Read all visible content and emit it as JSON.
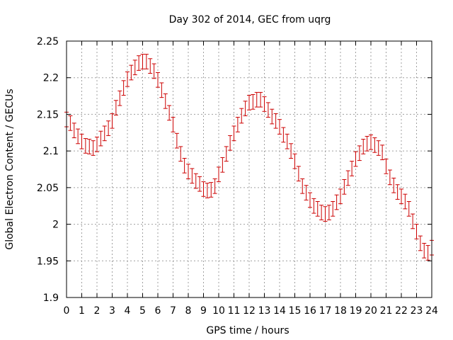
{
  "chart_data": {
    "type": "scatter",
    "title": "Day 302 of 2014, GEC from uqrg",
    "xlabel": "GPS time / hours",
    "ylabel": "Global Electron Content / GECUs",
    "xlim": [
      0,
      24
    ],
    "ylim": [
      1.9,
      2.25
    ],
    "xticks": [
      0,
      1,
      2,
      3,
      4,
      5,
      6,
      7,
      8,
      9,
      10,
      11,
      12,
      13,
      14,
      15,
      16,
      17,
      18,
      19,
      20,
      21,
      22,
      23,
      24
    ],
    "yticks": [
      1.9,
      1.95,
      2,
      2.05,
      2.1,
      2.15,
      2.2,
      2.25
    ],
    "ytick_labels": [
      "1.9",
      "1.95",
      "2",
      "2.05",
      "2.1",
      "2.15",
      "2.2",
      "2.25"
    ],
    "grid": true,
    "error_bar": 0.01,
    "color": "#cc0000",
    "x": [
      0,
      0.25,
      0.5,
      0.75,
      1,
      1.25,
      1.5,
      1.75,
      2,
      2.25,
      2.5,
      2.75,
      3,
      3.25,
      3.5,
      3.75,
      4,
      4.25,
      4.5,
      4.75,
      5,
      5.25,
      5.5,
      5.75,
      6,
      6.25,
      6.5,
      6.75,
      7,
      7.25,
      7.5,
      7.75,
      8,
      8.25,
      8.5,
      8.75,
      9,
      9.25,
      9.5,
      9.75,
      10,
      10.25,
      10.5,
      10.75,
      11,
      11.25,
      11.5,
      11.75,
      12,
      12.25,
      12.5,
      12.75,
      13,
      13.25,
      13.5,
      13.75,
      14,
      14.25,
      14.5,
      14.75,
      15,
      15.25,
      15.5,
      15.75,
      16,
      16.25,
      16.5,
      16.75,
      17,
      17.25,
      17.5,
      17.75,
      18,
      18.25,
      18.5,
      18.75,
      19,
      19.25,
      19.5,
      19.75,
      20,
      20.25,
      20.5,
      20.75,
      21,
      21.25,
      21.5,
      21.75,
      22,
      22.25,
      22.5,
      22.75,
      23,
      23.25,
      23.5,
      23.75,
      24
    ],
    "y": [
      2.143,
      2.138,
      2.128,
      2.12,
      2.113,
      2.107,
      2.106,
      2.104,
      2.109,
      2.117,
      2.124,
      2.131,
      2.141,
      2.159,
      2.172,
      2.186,
      2.198,
      2.207,
      2.214,
      2.22,
      2.222,
      2.222,
      2.216,
      2.209,
      2.197,
      2.183,
      2.168,
      2.152,
      2.136,
      2.114,
      2.096,
      2.08,
      2.072,
      2.066,
      2.059,
      2.055,
      2.048,
      2.046,
      2.047,
      2.052,
      2.068,
      2.081,
      2.096,
      2.111,
      2.124,
      2.136,
      2.148,
      2.158,
      2.166,
      2.167,
      2.17,
      2.17,
      2.164,
      2.156,
      2.147,
      2.141,
      2.133,
      2.122,
      2.113,
      2.1,
      2.086,
      2.069,
      2.052,
      2.043,
      2.033,
      2.025,
      2.021,
      2.016,
      2.014,
      2.016,
      2.021,
      2.03,
      2.038,
      2.051,
      2.063,
      2.076,
      2.089,
      2.097,
      2.106,
      2.11,
      2.112,
      2.108,
      2.104,
      2.098,
      2.079,
      2.064,
      2.053,
      2.044,
      2.038,
      2.031,
      2.021,
      2.004,
      1.99,
      1.974,
      1.964,
      1.961,
      1.968
    ]
  }
}
